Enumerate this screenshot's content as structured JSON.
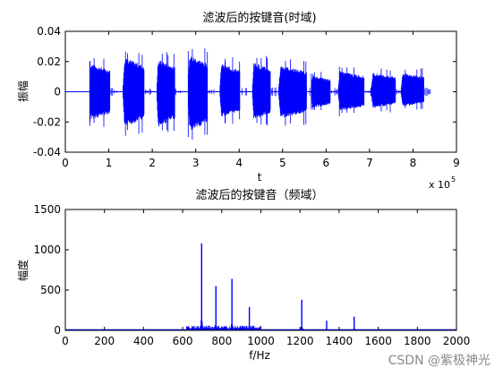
{
  "watermark": "CSDN @紫极神光",
  "chart_data": [
    {
      "type": "line",
      "title": "滤波后的按键音(时域)",
      "xlabel": "t",
      "ylabel": "振幅",
      "x_exponent_label": "x 10",
      "x_exponent_power": "5",
      "xlim": [
        0,
        9
      ],
      "ylim": [
        -0.04,
        0.04
      ],
      "x_unit_scale": 100000,
      "xticks": [
        "0",
        "1",
        "2",
        "3",
        "4",
        "5",
        "6",
        "7",
        "8",
        "9"
      ],
      "yticks": [
        "-0.04",
        "-0.02",
        "0",
        "0.02",
        "0.04"
      ],
      "grid": false,
      "color": "#0000ff",
      "series": [
        {
          "bursts": [
            {
              "x_start": 0.55,
              "x_end": 1.03,
              "pos_amp": 0.019,
              "neg_amp": -0.019
            },
            {
              "x_start": 1.32,
              "x_end": 1.82,
              "pos_amp": 0.023,
              "neg_amp": -0.024
            },
            {
              "x_start": 2.1,
              "x_end": 2.52,
              "pos_amp": 0.022,
              "neg_amp": -0.024
            },
            {
              "x_start": 2.82,
              "x_end": 3.27,
              "pos_amp": 0.025,
              "neg_amp": -0.027
            },
            {
              "x_start": 3.55,
              "x_end": 4.02,
              "pos_amp": 0.019,
              "neg_amp": -0.017
            },
            {
              "x_start": 4.3,
              "x_end": 4.72,
              "pos_amp": 0.02,
              "neg_amp": -0.019
            },
            {
              "x_start": 4.9,
              "x_end": 5.55,
              "pos_amp": 0.018,
              "neg_amp": -0.018
            },
            {
              "x_start": 5.65,
              "x_end": 6.1,
              "pos_amp": 0.011,
              "neg_amp": -0.011
            },
            {
              "x_start": 6.27,
              "x_end": 6.88,
              "pos_amp": 0.014,
              "neg_amp": -0.013
            },
            {
              "x_start": 7.03,
              "x_end": 7.6,
              "pos_amp": 0.013,
              "neg_amp": -0.011
            },
            {
              "x_start": 7.72,
              "x_end": 8.25,
              "pos_amp": 0.013,
              "neg_amp": -0.01
            }
          ]
        }
      ]
    },
    {
      "type": "line",
      "title": "滤波后的按键音（频域）",
      "xlabel": "f/Hz",
      "ylabel": "幅度",
      "xlim": [
        0,
        2000
      ],
      "ylim": [
        0,
        1500
      ],
      "xticks": [
        "0",
        "200",
        "400",
        "600",
        "800",
        "1000",
        "1200",
        "1400",
        "1600",
        "1800",
        "2000"
      ],
      "yticks": [
        "0",
        "500",
        "1000",
        "1500"
      ],
      "grid": false,
      "color": "#0000ff",
      "series": [
        {
          "peaks": [
            {
              "f": 697,
              "mag": 1080
            },
            {
              "f": 770,
              "mag": 550
            },
            {
              "f": 852,
              "mag": 640
            },
            {
              "f": 941,
              "mag": 290
            },
            {
              "f": 1209,
              "mag": 380
            },
            {
              "f": 1336,
              "mag": 120
            },
            {
              "f": 1477,
              "mag": 170
            }
          ]
        }
      ]
    }
  ]
}
